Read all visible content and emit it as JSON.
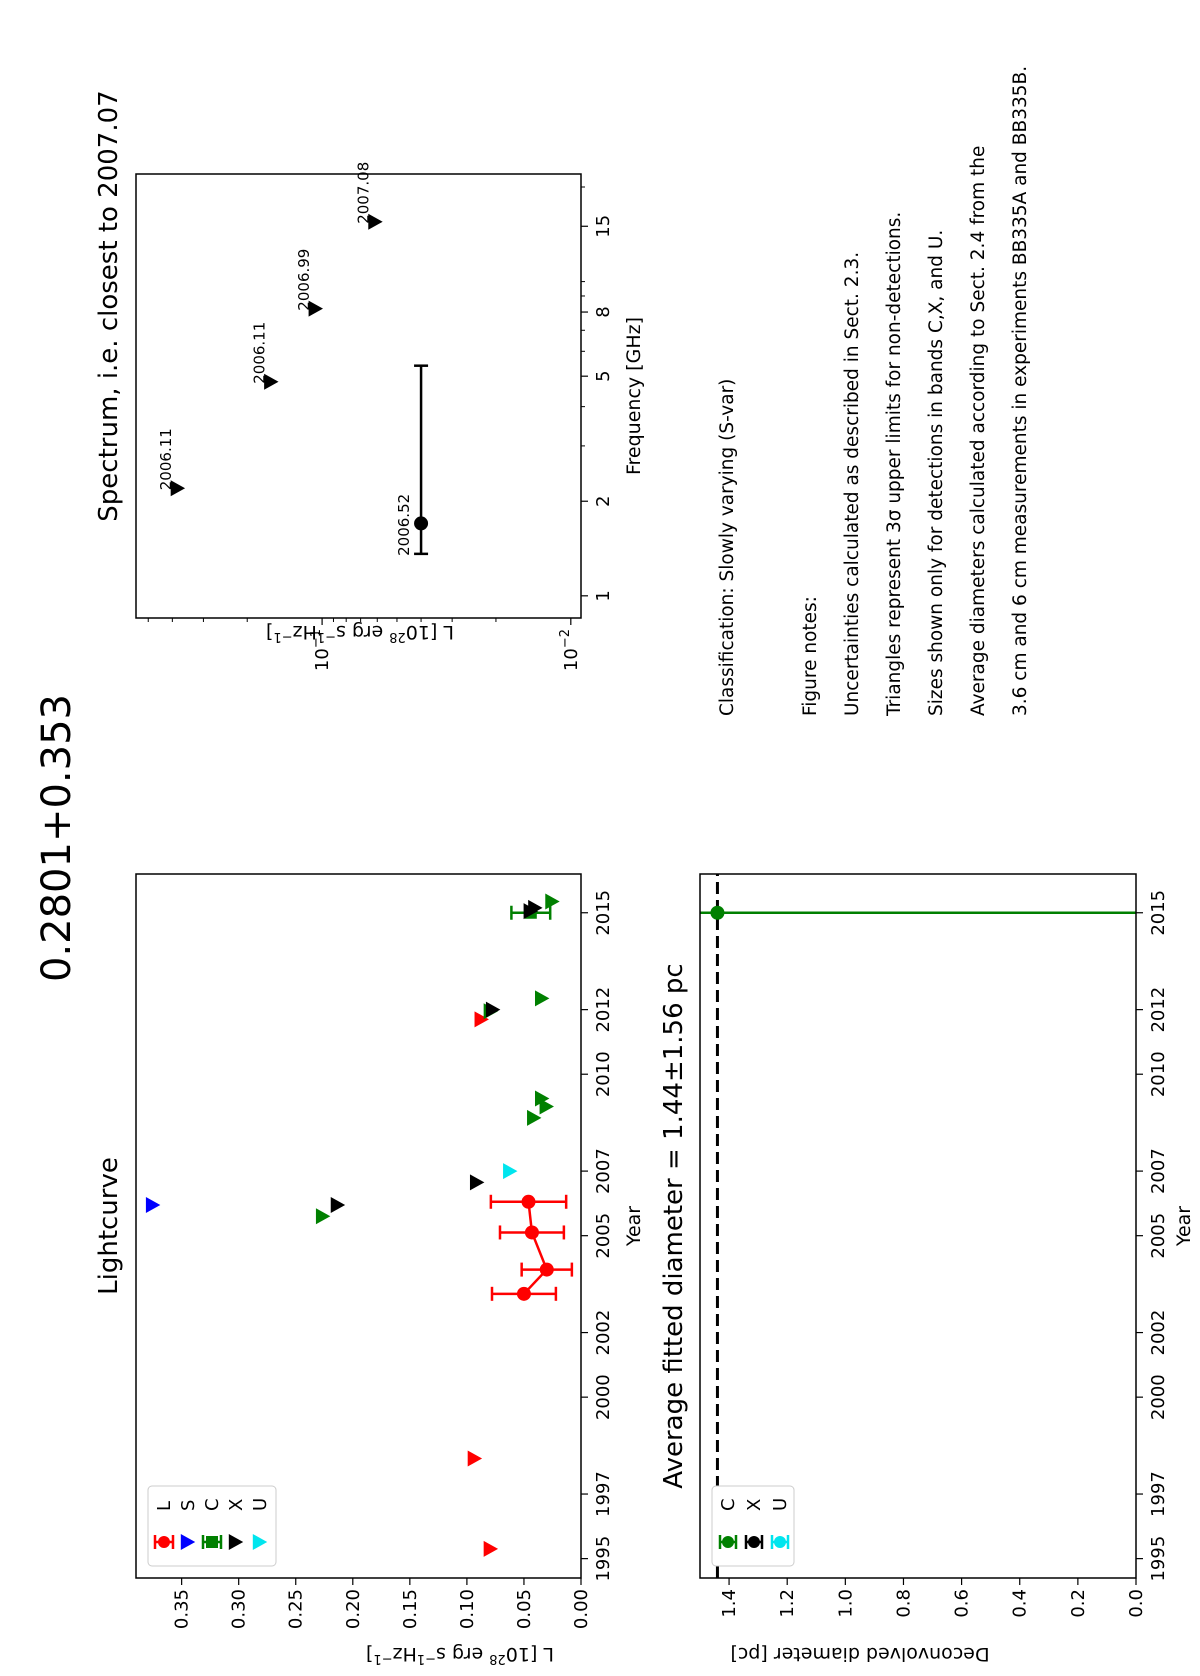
{
  "main_title": "0.2801+0.353",
  "colors": {
    "L": "#ff0000",
    "S": "#0000ff",
    "C": "#008000",
    "X": "#000000",
    "U": "#00e5ee"
  },
  "chart_data": [
    {
      "type": "scatter",
      "title": "Lightcurve",
      "xlabel": "Year",
      "ylabel": "L [10^28 erg s^-1 Hz^-1]",
      "xlim": [
        1994.4,
        2016.2
      ],
      "ylim": [
        0.0,
        0.39
      ],
      "xticks": [
        "1995",
        "1997",
        "2000",
        "2002",
        "2005",
        "2007",
        "2010",
        "2012",
        "2015"
      ],
      "yticks": [
        "0.00",
        "0.05",
        "0.10",
        "0.15",
        "0.20",
        "0.25",
        "0.30",
        "0.35"
      ],
      "legend": {
        "position": "top-left",
        "entries": [
          "L",
          "S",
          "C",
          "X",
          "U"
        ]
      },
      "series": [
        {
          "name": "L",
          "detections": [
            {
              "x": 2003.2,
              "y": 0.05,
              "err": 0.028
            },
            {
              "x": 2003.95,
              "y": 0.03,
              "err": 0.022
            },
            {
              "x": 2005.1,
              "y": 0.043,
              "err": 0.028
            },
            {
              "x": 2006.05,
              "y": 0.046,
              "err": 0.033
            }
          ],
          "upper_limits": [
            {
              "x": 1995.3,
              "y": 0.079
            },
            {
              "x": 1998.1,
              "y": 0.093
            },
            {
              "x": 2011.7,
              "y": 0.087
            }
          ]
        },
        {
          "name": "S",
          "upper_limits": [
            {
              "x": 2005.95,
              "y": 0.375
            }
          ]
        },
        {
          "name": "C",
          "detections": [
            {
              "x": 2015.0,
              "y": 0.044,
              "err": 0.017
            }
          ],
          "upper_limits": [
            {
              "x": 2005.6,
              "y": 0.226
            },
            {
              "x": 2008.65,
              "y": 0.041
            },
            {
              "x": 2009.0,
              "y": 0.03
            },
            {
              "x": 2009.25,
              "y": 0.034
            },
            {
              "x": 2011.95,
              "y": 0.079
            },
            {
              "x": 2012.35,
              "y": 0.034
            },
            {
              "x": 2015.35,
              "y": 0.025
            }
          ]
        },
        {
          "name": "X",
          "upper_limits": [
            {
              "x": 2005.95,
              "y": 0.213
            },
            {
              "x": 2006.65,
              "y": 0.091
            },
            {
              "x": 2012.0,
              "y": 0.077
            },
            {
              "x": 2015.05,
              "y": 0.044
            },
            {
              "x": 2015.15,
              "y": 0.04
            }
          ]
        },
        {
          "name": "U",
          "upper_limits": [
            {
              "x": 2007.0,
              "y": 0.062
            }
          ]
        }
      ]
    },
    {
      "type": "scatter",
      "title": "Spectrum, i.e. closest to 2007.07",
      "xlabel": "Frequency [GHz]",
      "ylabel": "L [10^28 erg s^-1 Hz^-1]",
      "xscale": "log",
      "yscale": "log",
      "xlim": [
        0.85,
        22.0
      ],
      "ylim": [
        0.0091,
        0.56
      ],
      "xticks": [
        "1",
        "2",
        "5",
        "8",
        "15"
      ],
      "yticks": [
        "10^-1",
        "10^-2"
      ],
      "points": [
        {
          "x": 1.7,
          "y": 0.04,
          "xerr": [
            1.36,
            5.4
          ],
          "type": "detection",
          "label": "2006.52"
        },
        {
          "x": 2.2,
          "y": 0.38,
          "type": "upper_limit",
          "label": "2006.11"
        },
        {
          "x": 4.8,
          "y": 0.16,
          "type": "upper_limit",
          "label": "2006.11"
        },
        {
          "x": 8.2,
          "y": 0.106,
          "type": "upper_limit",
          "label": "2006.99"
        },
        {
          "x": 15.5,
          "y": 0.061,
          "type": "upper_limit",
          "label": "2007.08"
        }
      ]
    },
    {
      "type": "scatter",
      "title": "Average fitted diameter = 1.44±1.56 pc",
      "xlabel": "Year",
      "ylabel": "Deconvolved diameter [pc]",
      "xlim": [
        1994.4,
        2016.2
      ],
      "ylim": [
        0.0,
        1.5
      ],
      "xticks": [
        "1995",
        "1997",
        "2000",
        "2002",
        "2005",
        "2007",
        "2010",
        "2012",
        "2015"
      ],
      "yticks": [
        "0.0",
        "0.2",
        "0.4",
        "0.6",
        "0.8",
        "1.0",
        "1.2",
        "1.4"
      ],
      "legend": {
        "position": "top-left",
        "entries": [
          "C",
          "X",
          "U"
        ]
      },
      "average": 1.44,
      "points": [
        {
          "x": 2015.0,
          "y": 1.44,
          "err": 1.56,
          "band": "C"
        }
      ]
    }
  ],
  "text": {
    "classification": "Classification: Slowly varying (S-var)",
    "notes_header": "Figure notes:",
    "note_1": "Uncertainties calculated as described in Sect. 2.3.",
    "note_2": "Triangles represent 3σ upper limits for non-detections.",
    "note_3": "Sizes shown only for detections in bands C,X, and U.",
    "note_4": "Average diameters calculated according to Sect. 2.4 from the",
    "note_5": "3.6 cm and 6 cm measurements in experiments BB335A and BB335B."
  }
}
